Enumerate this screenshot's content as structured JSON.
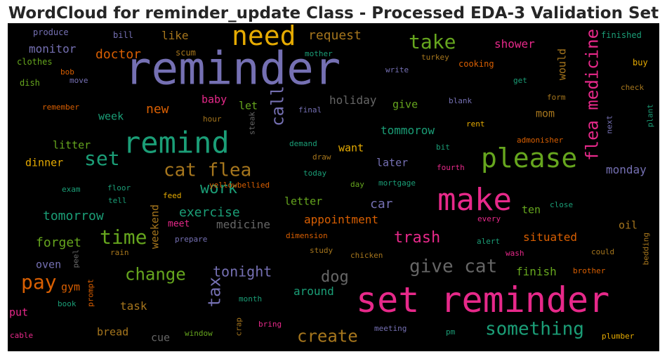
{
  "chart_data": {
    "type": "wordcloud",
    "title": "WordCloud for reminder_update Class - Processed EDA-3 Validation Set",
    "background": "#000000",
    "palette": [
      "#7570b3",
      "#e7298a",
      "#1b9e77",
      "#66a61e",
      "#e6ab02",
      "#d95f02",
      "#a6761d",
      "#666666"
    ],
    "words": [
      {
        "text": "reminder",
        "weight": 100,
        "color": "#7570b3",
        "orientation": "horizontal"
      },
      {
        "text": "set reminder",
        "weight": 84,
        "color": "#e7298a",
        "orientation": "horizontal"
      },
      {
        "text": "make",
        "weight": 72,
        "color": "#e7298a",
        "orientation": "horizontal"
      },
      {
        "text": "remind",
        "weight": 68,
        "color": "#1b9e77",
        "orientation": "horizontal"
      },
      {
        "text": "please",
        "weight": 60,
        "color": "#66a61e",
        "orientation": "horizontal"
      },
      {
        "text": "need",
        "weight": 56,
        "color": "#e6ab02",
        "orientation": "horizontal"
      },
      {
        "text": "flea medicine",
        "weight": 44,
        "color": "#e7298a",
        "orientation": "vertical"
      },
      {
        "text": "cat flea",
        "weight": 42,
        "color": "#a6761d",
        "orientation": "horizontal"
      },
      {
        "text": "take",
        "weight": 40,
        "color": "#66a61e",
        "orientation": "horizontal"
      },
      {
        "text": "give cat",
        "weight": 38,
        "color": "#666666",
        "orientation": "horizontal"
      },
      {
        "text": "something",
        "weight": 38,
        "color": "#1b9e77",
        "orientation": "horizontal"
      },
      {
        "text": "set",
        "weight": 38,
        "color": "#1b9e77",
        "orientation": "horizontal"
      },
      {
        "text": "time",
        "weight": 36,
        "color": "#66a61e",
        "orientation": "horizontal"
      },
      {
        "text": "pay",
        "weight": 36,
        "color": "#d95f02",
        "orientation": "horizontal"
      },
      {
        "text": "call",
        "weight": 34,
        "color": "#7570b3",
        "orientation": "vertical"
      },
      {
        "text": "tax",
        "weight": 32,
        "color": "#7570b3",
        "orientation": "vertical"
      },
      {
        "text": "work",
        "weight": 30,
        "color": "#1b9e77",
        "orientation": "horizontal"
      },
      {
        "text": "change",
        "weight": 30,
        "color": "#66a61e",
        "orientation": "horizontal"
      },
      {
        "text": "create",
        "weight": 30,
        "color": "#a6761d",
        "orientation": "horizontal"
      },
      {
        "text": "trash",
        "weight": 28,
        "color": "#e7298a",
        "orientation": "horizontal"
      },
      {
        "text": "dog",
        "weight": 28,
        "color": "#666666",
        "orientation": "horizontal"
      },
      {
        "text": "tonight",
        "weight": 26,
        "color": "#7570b3",
        "orientation": "horizontal"
      },
      {
        "text": "doctor",
        "weight": 24,
        "color": "#d95f02",
        "orientation": "horizontal"
      },
      {
        "text": "request",
        "weight": 24,
        "color": "#a6761d",
        "orientation": "horizontal"
      },
      {
        "text": "forget",
        "weight": 24,
        "color": "#66a61e",
        "orientation": "horizontal"
      },
      {
        "text": "exercise",
        "weight": 24,
        "color": "#1b9e77",
        "orientation": "horizontal"
      },
      {
        "text": "tomorrow",
        "weight": 24,
        "color": "#1b9e77",
        "orientation": "horizontal"
      },
      {
        "text": "car",
        "weight": 22,
        "color": "#7570b3",
        "orientation": "horizontal"
      },
      {
        "text": "new",
        "weight": 22,
        "color": "#d95f02",
        "orientation": "horizontal"
      },
      {
        "text": "medicine",
        "weight": 20,
        "color": "#666666",
        "orientation": "horizontal"
      },
      {
        "text": "appointment",
        "weight": 20,
        "color": "#d95f02",
        "orientation": "horizontal"
      },
      {
        "text": "holiday",
        "weight": 20,
        "color": "#666666",
        "orientation": "horizontal"
      },
      {
        "text": "shower",
        "weight": 20,
        "color": "#e7298a",
        "orientation": "horizontal"
      },
      {
        "text": "monitor",
        "weight": 20,
        "color": "#7570b3",
        "orientation": "horizontal"
      },
      {
        "text": "like",
        "weight": 20,
        "color": "#a6761d",
        "orientation": "horizontal"
      },
      {
        "text": "tommorow",
        "weight": 20,
        "color": "#1b9e77",
        "orientation": "horizontal"
      },
      {
        "text": "monday",
        "weight": 20,
        "color": "#7570b3",
        "orientation": "horizontal"
      },
      {
        "text": "situated",
        "weight": 20,
        "color": "#d95f02",
        "orientation": "horizontal"
      },
      {
        "text": "finish",
        "weight": 20,
        "color": "#66a61e",
        "orientation": "horizontal"
      },
      {
        "text": "around",
        "weight": 20,
        "color": "#1b9e77",
        "orientation": "horizontal"
      },
      {
        "text": "task",
        "weight": 20,
        "color": "#a6761d",
        "orientation": "horizontal"
      },
      {
        "text": "weekend",
        "weight": 18,
        "color": "#a6761d",
        "orientation": "vertical"
      },
      {
        "text": "would",
        "weight": 18,
        "color": "#a6761d",
        "orientation": "vertical"
      },
      {
        "text": "give",
        "weight": 18,
        "color": "#66a61e",
        "orientation": "horizontal"
      },
      {
        "text": "baby",
        "weight": 18,
        "color": "#e7298a",
        "orientation": "horizontal"
      },
      {
        "text": "let",
        "weight": 18,
        "color": "#66a61e",
        "orientation": "horizontal"
      },
      {
        "text": "week",
        "weight": 18,
        "color": "#1b9e77",
        "orientation": "horizontal"
      },
      {
        "text": "mom",
        "weight": 18,
        "color": "#a6761d",
        "orientation": "horizontal"
      },
      {
        "text": "want",
        "weight": 18,
        "color": "#e6ab02",
        "orientation": "horizontal"
      },
      {
        "text": "later",
        "weight": 18,
        "color": "#7570b3",
        "orientation": "horizontal"
      },
      {
        "text": "litter",
        "weight": 18,
        "color": "#66a61e",
        "orientation": "horizontal"
      },
      {
        "text": "dinner",
        "weight": 18,
        "color": "#e6ab02",
        "orientation": "horizontal"
      },
      {
        "text": "letter",
        "weight": 18,
        "color": "#66a61e",
        "orientation": "horizontal"
      },
      {
        "text": "ten",
        "weight": 18,
        "color": "#66a61e",
        "orientation": "horizontal"
      },
      {
        "text": "oil",
        "weight": 18,
        "color": "#a6761d",
        "orientation": "horizontal"
      },
      {
        "text": "oven",
        "weight": 18,
        "color": "#7570b3",
        "orientation": "horizontal"
      },
      {
        "text": "gym",
        "weight": 18,
        "color": "#d95f02",
        "orientation": "horizontal"
      },
      {
        "text": "put",
        "weight": 18,
        "color": "#e7298a",
        "orientation": "horizontal"
      },
      {
        "text": "bread",
        "weight": 18,
        "color": "#a6761d",
        "orientation": "horizontal"
      },
      {
        "text": "cue",
        "weight": 16,
        "color": "#666666",
        "orientation": "horizontal"
      },
      {
        "text": "meet",
        "weight": 14,
        "color": "#e7298a",
        "orientation": "horizontal"
      },
      {
        "text": "produce",
        "weight": 14,
        "color": "#7570b3",
        "orientation": "horizontal"
      },
      {
        "text": "bill",
        "weight": 14,
        "color": "#7570b3",
        "orientation": "horizontal"
      },
      {
        "text": "scum",
        "weight": 14,
        "color": "#a6761d",
        "orientation": "horizontal"
      },
      {
        "text": "finished",
        "weight": 14,
        "color": "#1b9e77",
        "orientation": "horizontal"
      },
      {
        "text": "clothes",
        "weight": 14,
        "color": "#66a61e",
        "orientation": "horizontal"
      },
      {
        "text": "mother",
        "weight": 13,
        "color": "#1b9e77",
        "orientation": "horizontal"
      },
      {
        "text": "turkey",
        "weight": 13,
        "color": "#a6761d",
        "orientation": "horizontal"
      },
      {
        "text": "cooking",
        "weight": 14,
        "color": "#d95f02",
        "orientation": "horizontal"
      },
      {
        "text": "buy",
        "weight": 14,
        "color": "#e6ab02",
        "orientation": "horizontal"
      },
      {
        "text": "bob",
        "weight": 13,
        "color": "#d95f02",
        "orientation": "horizontal"
      },
      {
        "text": "move",
        "weight": 13,
        "color": "#7570b3",
        "orientation": "horizontal"
      },
      {
        "text": "dish",
        "weight": 14,
        "color": "#66a61e",
        "orientation": "horizontal"
      },
      {
        "text": "write",
        "weight": 13,
        "color": "#7570b3",
        "orientation": "horizontal"
      },
      {
        "text": "get",
        "weight": 13,
        "color": "#1b9e77",
        "orientation": "horizontal"
      },
      {
        "text": "check",
        "weight": 13,
        "color": "#a6761d",
        "orientation": "horizontal"
      },
      {
        "text": "remember",
        "weight": 13,
        "color": "#d95f02",
        "orientation": "horizontal"
      },
      {
        "text": "blank",
        "weight": 13,
        "color": "#7570b3",
        "orientation": "horizontal"
      },
      {
        "text": "form",
        "weight": 13,
        "color": "#a6761d",
        "orientation": "horizontal"
      },
      {
        "text": "final",
        "weight": 13,
        "color": "#7570b3",
        "orientation": "horizontal"
      },
      {
        "text": "hour",
        "weight": 13,
        "color": "#a6761d",
        "orientation": "horizontal"
      },
      {
        "text": "steak",
        "weight": 12,
        "color": "#666666",
        "orientation": "vertical"
      },
      {
        "text": "rent",
        "weight": 13,
        "color": "#e6ab02",
        "orientation": "horizontal"
      },
      {
        "text": "plant",
        "weight": 12,
        "color": "#1b9e77",
        "orientation": "vertical"
      },
      {
        "text": "demand",
        "weight": 13,
        "color": "#1b9e77",
        "orientation": "horizontal"
      },
      {
        "text": "bit",
        "weight": 13,
        "color": "#1b9e77",
        "orientation": "horizontal"
      },
      {
        "text": "admonisher",
        "weight": 13,
        "color": "#d95f02",
        "orientation": "horizontal"
      },
      {
        "text": "next",
        "weight": 12,
        "color": "#7570b3",
        "orientation": "vertical"
      },
      {
        "text": "draw",
        "weight": 13,
        "color": "#a6761d",
        "orientation": "horizontal"
      },
      {
        "text": "today",
        "weight": 13,
        "color": "#1b9e77",
        "orientation": "horizontal"
      },
      {
        "text": "fourth",
        "weight": 13,
        "color": "#e7298a",
        "orientation": "horizontal"
      },
      {
        "text": "yellowbellied",
        "weight": 13,
        "color": "#d95f02",
        "orientation": "horizontal"
      },
      {
        "text": "day",
        "weight": 13,
        "color": "#66a61e",
        "orientation": "horizontal"
      },
      {
        "text": "mortgage",
        "weight": 13,
        "color": "#1b9e77",
        "orientation": "horizontal"
      },
      {
        "text": "exam",
        "weight": 13,
        "color": "#1b9e77",
        "orientation": "horizontal"
      },
      {
        "text": "floor",
        "weight": 13,
        "color": "#1b9e77",
        "orientation": "horizontal"
      },
      {
        "text": "tell",
        "weight": 13,
        "color": "#1b9e77",
        "orientation": "horizontal"
      },
      {
        "text": "feed",
        "weight": 13,
        "color": "#e6ab02",
        "orientation": "horizontal"
      },
      {
        "text": "close",
        "weight": 13,
        "color": "#1b9e77",
        "orientation": "horizontal"
      },
      {
        "text": "every",
        "weight": 13,
        "color": "#e7298a",
        "orientation": "horizontal"
      },
      {
        "text": "prepare",
        "weight": 13,
        "color": "#7570b3",
        "orientation": "horizontal"
      },
      {
        "text": "dimension",
        "weight": 13,
        "color": "#d95f02",
        "orientation": "horizontal"
      },
      {
        "text": "alert",
        "weight": 13,
        "color": "#1b9e77",
        "orientation": "horizontal"
      },
      {
        "text": "bedding",
        "weight": 12,
        "color": "#a6761d",
        "orientation": "vertical"
      },
      {
        "text": "rain",
        "weight": 13,
        "color": "#a6761d",
        "orientation": "horizontal"
      },
      {
        "text": "peel",
        "weight": 12,
        "color": "#666666",
        "orientation": "vertical"
      },
      {
        "text": "study",
        "weight": 13,
        "color": "#a6761d",
        "orientation": "horizontal"
      },
      {
        "text": "chicken",
        "weight": 13,
        "color": "#a6761d",
        "orientation": "horizontal"
      },
      {
        "text": "wash",
        "weight": 13,
        "color": "#e7298a",
        "orientation": "horizontal"
      },
      {
        "text": "could",
        "weight": 13,
        "color": "#a6761d",
        "orientation": "horizontal"
      },
      {
        "text": "brother",
        "weight": 13,
        "color": "#d95f02",
        "orientation": "horizontal"
      },
      {
        "text": "prompt",
        "weight": 12,
        "color": "#d95f02",
        "orientation": "vertical"
      },
      {
        "text": "book",
        "weight": 13,
        "color": "#1b9e77",
        "orientation": "horizontal"
      },
      {
        "text": "month",
        "weight": 13,
        "color": "#1b9e77",
        "orientation": "horizontal"
      },
      {
        "text": "crap",
        "weight": 12,
        "color": "#a6761d",
        "orientation": "vertical"
      },
      {
        "text": "bring",
        "weight": 13,
        "color": "#e7298a",
        "orientation": "horizontal"
      },
      {
        "text": "meeting",
        "weight": 13,
        "color": "#7570b3",
        "orientation": "horizontal"
      },
      {
        "text": "pm",
        "weight": 13,
        "color": "#1b9e77",
        "orientation": "horizontal"
      },
      {
        "text": "plumber",
        "weight": 13,
        "color": "#e6ab02",
        "orientation": "horizontal"
      },
      {
        "text": "cable",
        "weight": 13,
        "color": "#e7298a",
        "orientation": "horizontal"
      },
      {
        "text": "window",
        "weight": 13,
        "color": "#66a61e",
        "orientation": "horizontal"
      }
    ]
  }
}
